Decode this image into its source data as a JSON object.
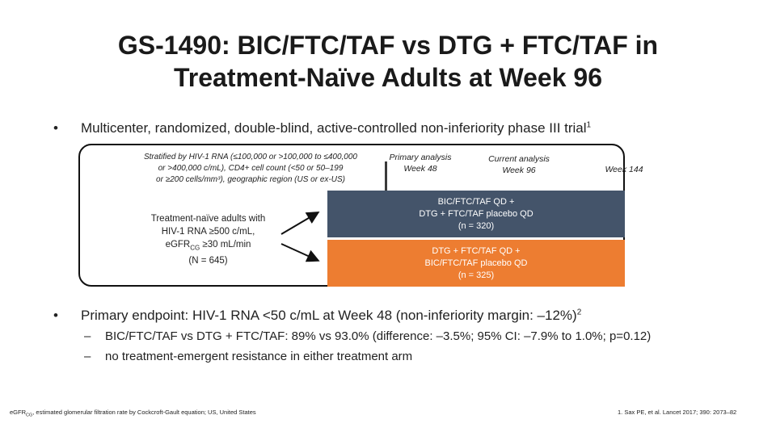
{
  "title": {
    "line1": "GS-1490: BIC/FTC/TAF vs DTG + FTC/TAF in",
    "line2": "Treatment-Naïve Adults at Week 96"
  },
  "bullets": {
    "symbol": "•",
    "design": "Multicenter, randomized, double-blind, active-controlled non-inferiority phase III trial",
    "design_sup": "1",
    "endpoint": "Primary endpoint: HIV-1 RNA <50 c/mL at Week 48 (non-inferiority margin: –12%)",
    "endpoint_sup": "2",
    "sub_symbol": "–",
    "sub_items": [
      "BIC/FTC/TAF vs DTG + FTC/TAF: 89% vs 93.0% (difference: –3.5%; 95% CI: –7.9% to 1.0%; p=0.12)",
      "no treatment-emergent resistance in either treatment arm"
    ]
  },
  "diagram": {
    "stratification": {
      "line1": "Stratified by HIV-1 RNA (≤100,000 or >100,000 to ≤400,000",
      "line2": "or >400,000 c/mL), CD4+ cell count (<50 or 50–199",
      "line3": "or ≥200 cells/mm³), geographic region (US or ex-US)"
    },
    "primary_analysis": {
      "line1": "Primary analysis",
      "line2": "Week 48"
    },
    "current_analysis": {
      "line1": "Current analysis",
      "line2": "Week 96"
    },
    "end": "Week 144",
    "population": {
      "line1": "Treatment-naïve adults with",
      "line2": "HIV-1 RNA ≥500 c/mL,",
      "line3_pre": "eGFR",
      "line3_sub": "CG",
      "line3_post": " ≥30 mL/min",
      "line4": "(N = 645)"
    },
    "arm_a": {
      "line1": "BIC/FTC/TAF QD +",
      "line2": "DTG + FTC/TAF placebo QD",
      "line3": "(n = 320)",
      "color": "#44546a"
    },
    "arm_b": {
      "line1": "DTG + FTC/TAF QD +",
      "line2": "BIC/FTC/TAF placebo QD",
      "line3": "(n = 325)",
      "color": "#ed7d31"
    }
  },
  "footnotes": {
    "left_pre": "eGFR",
    "left_sub": "CG",
    "left_post": ", estimated glomerular filtration rate by Cockcroft-Gault equation; US, United States",
    "right": "1. Sax PE, et al. Lancet 2017; 390: 2073–82"
  }
}
